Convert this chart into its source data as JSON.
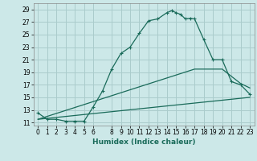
{
  "xlabel": "Humidex (Indice chaleur)",
  "xlim": [
    -0.5,
    23.5
  ],
  "ylim": [
    10.5,
    30
  ],
  "xticks": [
    0,
    1,
    2,
    3,
    4,
    5,
    6,
    8,
    9,
    10,
    11,
    12,
    13,
    14,
    15,
    16,
    17,
    18,
    19,
    20,
    21,
    22,
    23
  ],
  "yticks": [
    11,
    13,
    15,
    17,
    19,
    21,
    23,
    25,
    27,
    29
  ],
  "bg_color": "#cce8e8",
  "grid_color": "#aacccc",
  "line_color": "#1a6b5a",
  "curve1_x": [
    0,
    1,
    2,
    3,
    4,
    5,
    6,
    7,
    8,
    9,
    10,
    11,
    12,
    13,
    14,
    14.5,
    15,
    15.5,
    16,
    16.5,
    17,
    18,
    19,
    20,
    21,
    22,
    23
  ],
  "curve1_y": [
    12.5,
    11.5,
    11.5,
    11.2,
    11.2,
    11.2,
    13.5,
    16.0,
    19.5,
    22.0,
    23.0,
    25.2,
    27.2,
    27.5,
    28.5,
    28.8,
    28.5,
    28.2,
    27.5,
    27.6,
    27.5,
    24.2,
    21.0,
    21.0,
    17.5,
    17.0,
    15.5
  ],
  "line2_x": [
    0,
    17,
    20,
    22,
    23
  ],
  "line2_y": [
    11.5,
    19.5,
    19.5,
    17.2,
    16.5
  ],
  "line3_x": [
    0,
    23
  ],
  "line3_y": [
    11.5,
    15.0
  ]
}
